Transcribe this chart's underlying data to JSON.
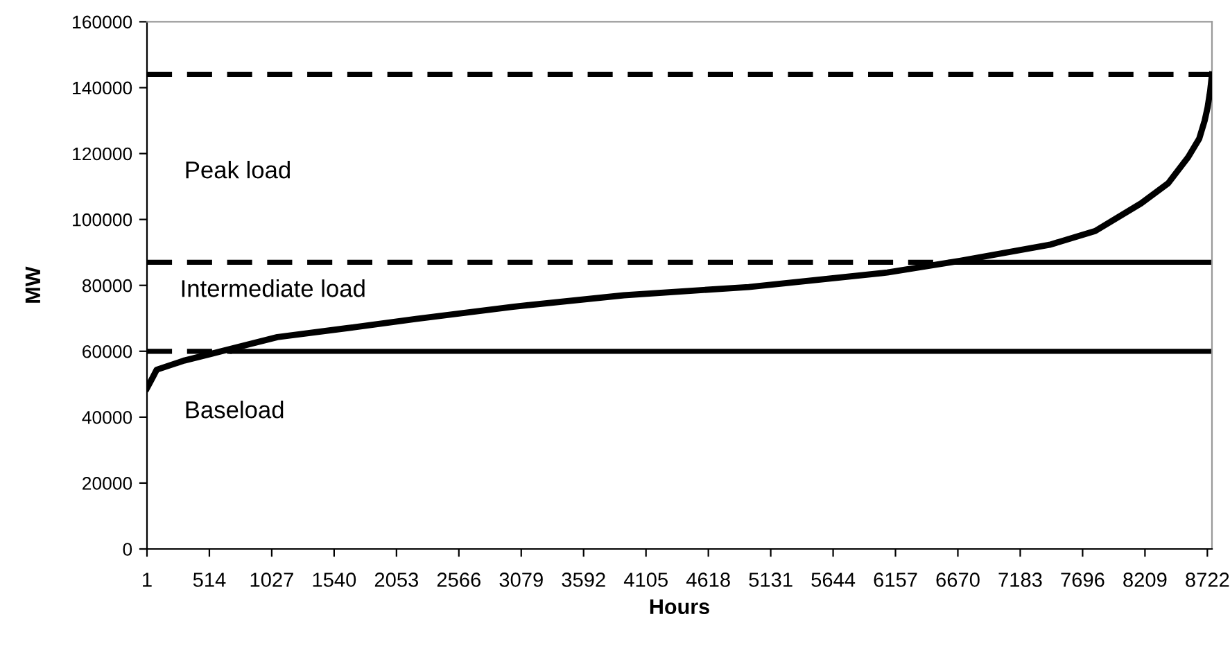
{
  "chart_data": {
    "type": "line",
    "xlabel": "Hours",
    "ylabel": "MW",
    "xlim": [
      1,
      8760
    ],
    "ylim": [
      0,
      160000
    ],
    "xticks": [
      1,
      514,
      1027,
      1540,
      2053,
      2566,
      3079,
      3592,
      4105,
      4618,
      5131,
      5644,
      6157,
      6670,
      7183,
      7696,
      8209,
      8722
    ],
    "yticks": [
      0,
      20000,
      40000,
      60000,
      80000,
      100000,
      120000,
      140000,
      160000
    ],
    "grid": false,
    "marker": "none",
    "series": [
      {
        "color": "#000000",
        "line_style": "solid",
        "x": [
          1,
          47,
          81,
          309,
          537,
          1073,
          1643,
          2213,
          3011,
          3923,
          4950,
          6090,
          6694,
          7424,
          7800,
          8177,
          8400,
          8564,
          8655,
          8700,
          8724,
          8745,
          8760
        ],
        "values": [
          48800,
          52000,
          54400,
          57200,
          59300,
          64300,
          67000,
          69800,
          73500,
          77000,
          79500,
          83900,
          87500,
          92300,
          96500,
          104900,
          111000,
          118900,
          124500,
          130000,
          134000,
          139000,
          144000
        ]
      },
      {
        "color": "#000000",
        "line_style": "dashed",
        "x": [
          1,
          8760
        ],
        "values": [
          144000,
          144000
        ]
      },
      {
        "color": "#000000",
        "line_style": "dashed",
        "x": [
          1,
          6670
        ],
        "values": [
          87000,
          87000
        ]
      },
      {
        "color": "#000000",
        "line_style": "solid",
        "x": [
          6670,
          8760
        ],
        "values": [
          87000,
          87000
        ]
      },
      {
        "color": "#000000",
        "line_style": "dashed",
        "x": [
          1,
          700
        ],
        "values": [
          60000,
          60000
        ]
      },
      {
        "color": "#000000",
        "line_style": "solid",
        "x": [
          700,
          8760
        ],
        "values": [
          60000,
          60000
        ]
      }
    ],
    "annotations": [
      "Peak load",
      "Intermediate load",
      "Baseload"
    ]
  }
}
